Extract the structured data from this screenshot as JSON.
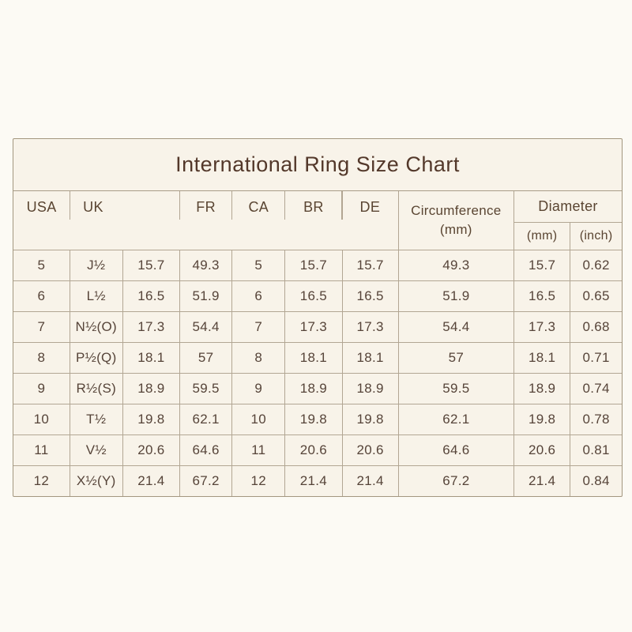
{
  "title": "International Ring Size Chart",
  "chart_data": {
    "type": "table",
    "title": "International Ring Size Chart",
    "columns": [
      "USA",
      "UK (size)",
      "UK (mm)",
      "FR",
      "CA",
      "BR",
      "DE",
      "Circumference (mm)",
      "Diameter (mm)",
      "Diameter (inch)"
    ],
    "header": {
      "usa": "USA",
      "uk": "UK",
      "fr": "FR",
      "ca": "CA",
      "br": "BR",
      "de": "DE",
      "circumference_line1": "Circumference",
      "circumference_line2": "(mm)",
      "diameter": "Diameter",
      "diameter_mm": "(mm)",
      "diameter_inch": "(inch)"
    },
    "rows": [
      [
        "5",
        "J½",
        "15.7",
        "49.3",
        "5",
        "15.7",
        "15.7",
        "49.3",
        "15.7",
        "0.62"
      ],
      [
        "6",
        "L½",
        "16.5",
        "51.9",
        "6",
        "16.5",
        "16.5",
        "51.9",
        "16.5",
        "0.65"
      ],
      [
        "7",
        "N½(O)",
        "17.3",
        "54.4",
        "7",
        "17.3",
        "17.3",
        "54.4",
        "17.3",
        "0.68"
      ],
      [
        "8",
        "P½(Q)",
        "18.1",
        "57",
        "8",
        "18.1",
        "18.1",
        "57",
        "18.1",
        "0.71"
      ],
      [
        "9",
        "R½(S)",
        "18.9",
        "59.5",
        "9",
        "18.9",
        "18.9",
        "59.5",
        "18.9",
        "0.74"
      ],
      [
        "10",
        "T½",
        "19.8",
        "62.1",
        "10",
        "19.8",
        "19.8",
        "62.1",
        "19.8",
        "0.78"
      ],
      [
        "11",
        "V½",
        "20.6",
        "64.6",
        "11",
        "20.6",
        "20.6",
        "64.6",
        "20.6",
        "0.81"
      ],
      [
        "12",
        "X½(Y)",
        "21.4",
        "67.2",
        "12",
        "21.4",
        "21.4",
        "67.2",
        "21.4",
        "0.84"
      ]
    ]
  },
  "colors": {
    "page_background": "#fcfaf4",
    "card_background": "#f8f3e9",
    "grid_line": "#b2a693",
    "card_border": "#a3977f",
    "title_text": "#53382a",
    "header_text": "#5a4532",
    "cell_text": "#564439"
  }
}
